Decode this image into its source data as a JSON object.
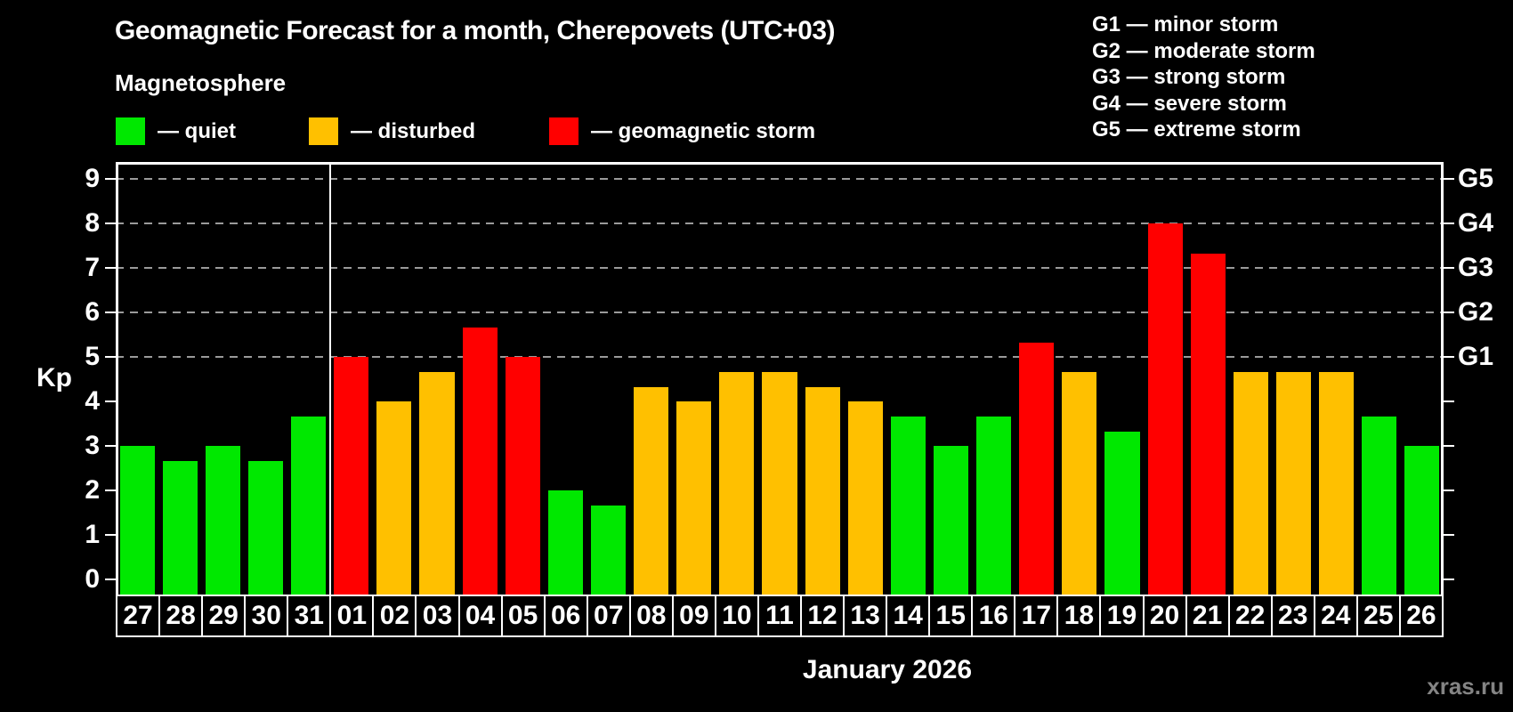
{
  "header": {
    "title": "Geomagnetic Forecast for a month, Cherepovets (UTC+03)",
    "subtitle": "Magnetosphere"
  },
  "legend": {
    "items": [
      {
        "status": "quiet",
        "label": "— quiet",
        "color": "#00e800"
      },
      {
        "status": "disturbed",
        "label": "— disturbed",
        "color": "#ffc000"
      },
      {
        "status": "storm",
        "label": "— geomagnetic storm",
        "color": "#ff0000"
      }
    ]
  },
  "g_legend": {
    "items": [
      {
        "text": "G1 — minor storm"
      },
      {
        "text": "G2 — moderate storm"
      },
      {
        "text": "G3 — strong storm"
      },
      {
        "text": "G4 — severe storm"
      },
      {
        "text": "G5 — extreme storm"
      }
    ]
  },
  "footer": {
    "watermark": "xras.ru"
  },
  "chart_data": {
    "type": "bar",
    "title": "Geomagnetic Forecast for a month, Cherepovets (UTC+03)",
    "subtitle": "Magnetosphere",
    "xlabel": "January 2026",
    "ylabel": "Kp",
    "ylim": [
      0,
      9
    ],
    "y_ticks": [
      0,
      1,
      2,
      3,
      4,
      5,
      6,
      7,
      8,
      9
    ],
    "gridline_levels": [
      5,
      6,
      7,
      8,
      9
    ],
    "grid": "dashed, only at G-storm levels 5-9",
    "right_axis_labels": [
      {
        "kp": 5,
        "label": "G1"
      },
      {
        "kp": 6,
        "label": "G2"
      },
      {
        "kp": 7,
        "label": "G3"
      },
      {
        "kp": 8,
        "label": "G4"
      },
      {
        "kp": 9,
        "label": "G5"
      }
    ],
    "month_separator_index": 5,
    "categories": [
      "27",
      "28",
      "29",
      "30",
      "31",
      "01",
      "02",
      "03",
      "04",
      "05",
      "06",
      "07",
      "08",
      "09",
      "10",
      "11",
      "12",
      "13",
      "14",
      "15",
      "16",
      "17",
      "18",
      "19",
      "20",
      "21",
      "22",
      "23",
      "24",
      "25",
      "26"
    ],
    "values": [
      3.0,
      2.67,
      3.0,
      2.67,
      3.67,
      5.0,
      4.0,
      4.67,
      5.67,
      5.0,
      2.0,
      1.67,
      4.33,
      4.0,
      4.67,
      4.67,
      4.33,
      4.0,
      3.67,
      3.0,
      3.67,
      5.33,
      4.67,
      3.33,
      8.0,
      7.33,
      4.67,
      4.67,
      4.67,
      3.67,
      3.0
    ],
    "statuses": [
      "quiet",
      "quiet",
      "quiet",
      "quiet",
      "quiet",
      "storm",
      "disturbed",
      "disturbed",
      "storm",
      "storm",
      "quiet",
      "quiet",
      "disturbed",
      "disturbed",
      "disturbed",
      "disturbed",
      "disturbed",
      "disturbed",
      "quiet",
      "quiet",
      "quiet",
      "storm",
      "disturbed",
      "quiet",
      "storm",
      "storm",
      "disturbed",
      "disturbed",
      "disturbed",
      "quiet",
      "quiet"
    ],
    "colors": {
      "quiet": "#00e800",
      "disturbed": "#ffc000",
      "storm": "#ff0000"
    }
  }
}
